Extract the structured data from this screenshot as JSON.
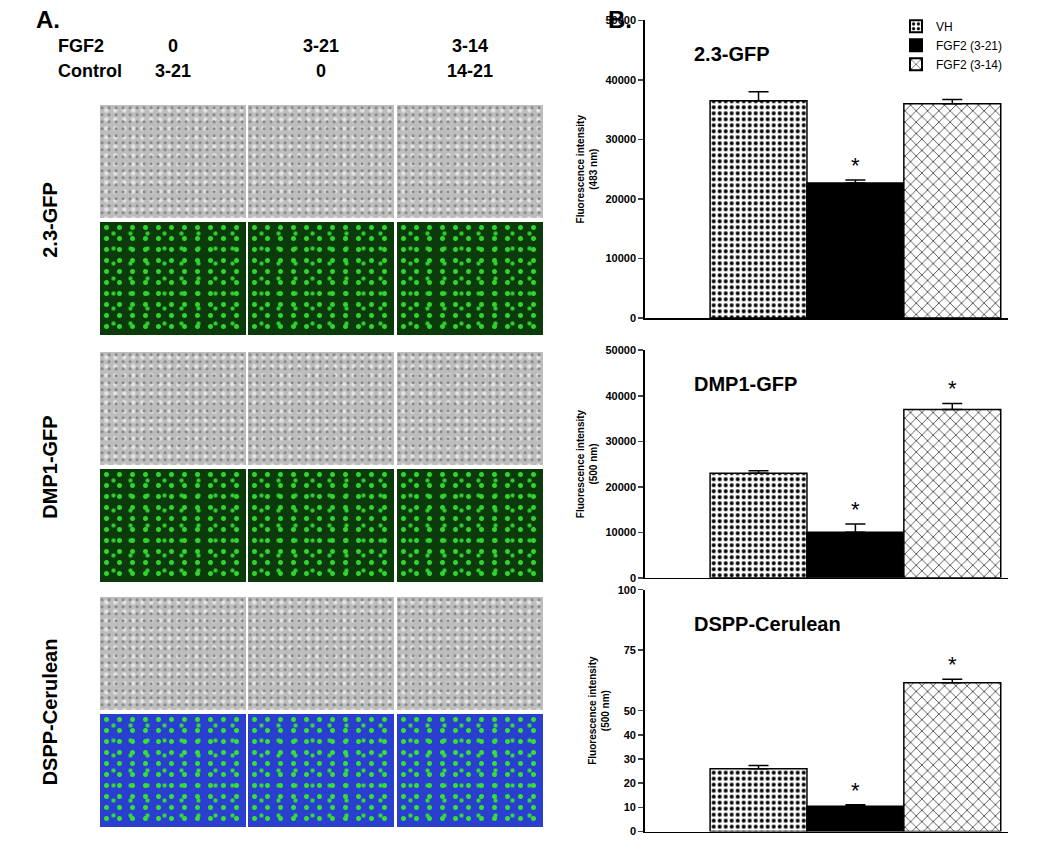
{
  "panel_a": {
    "label": "A.",
    "header_labels": [
      "FGF2",
      "Control"
    ],
    "columns": [
      [
        "0",
        "3-21"
      ],
      [
        "3-21",
        "0"
      ],
      [
        "3-14",
        "14-21"
      ]
    ],
    "rows": [
      {
        "label": "2.3-GFP",
        "color": "#2fd42f"
      },
      {
        "label": "DMP1-GFP",
        "color": "#2fd42f"
      },
      {
        "label": "DSPP-Cerulean",
        "color": "#2a3fd0"
      }
    ]
  },
  "panel_b_label": "B.",
  "chart_data": [
    {
      "type": "bar",
      "title": "2.3-GFP",
      "y_label": "Fluorescence intensity\n(483 nm)",
      "categories": [
        null
      ],
      "ylim": [
        0,
        50000
      ],
      "yticks": [
        0,
        10000,
        20000,
        30000,
        40000,
        50000
      ],
      "tick_labels": "y",
      "legend": "upper right",
      "series": [
        {
          "name": "VH",
          "color": "#ffffff",
          "marker": "dotted",
          "values": [
            36500
          ],
          "error": [
            1500
          ]
        },
        {
          "name": "FGF2 (3-21)",
          "color": "#000000",
          "marker": "solid",
          "values": [
            22700
          ],
          "error": [
            500
          ],
          "annotations": [
            "*"
          ]
        },
        {
          "name": "FGF2 (3-14)",
          "color": "#ffffff",
          "marker": "crosshatch",
          "values": [
            36000
          ],
          "error": [
            700
          ]
        }
      ]
    },
    {
      "type": "bar",
      "title": "DMP1-GFP",
      "y_label": "Fluorescence intensity\n(500 nm)",
      "categories": [
        null
      ],
      "ylim": [
        0,
        50000
      ],
      "yticks": [
        0,
        10000,
        20000,
        30000,
        40000,
        50000
      ],
      "tick_labels": "y",
      "series": [
        {
          "name": "VH",
          "color": "#ffffff",
          "marker": "dotted",
          "values": [
            23000
          ],
          "error": [
            500
          ]
        },
        {
          "name": "FGF2 (3-21)",
          "color": "#000000",
          "marker": "solid",
          "values": [
            10000
          ],
          "error": [
            1800
          ],
          "annotations": [
            "*"
          ]
        },
        {
          "name": "FGF2 (3-14)",
          "color": "#ffffff",
          "marker": "crosshatch",
          "values": [
            37000
          ],
          "error": [
            1300
          ],
          "annotations": [
            "*"
          ]
        }
      ]
    },
    {
      "type": "bar",
      "title": "DSPP-Cerulean",
      "y_label": "Fluorescence intensity\n(500 nm)",
      "categories": [
        null
      ],
      "ylim": [
        0,
        100
      ],
      "yticks": [
        0,
        10,
        20,
        30,
        40,
        50,
        75,
        100
      ],
      "tick_labels": "y",
      "series": [
        {
          "name": "VH",
          "color": "#ffffff",
          "marker": "dotted",
          "values": [
            26
          ],
          "error": [
            1.3
          ]
        },
        {
          "name": "FGF2 (3-21)",
          "color": "#000000",
          "marker": "solid",
          "values": [
            10.5
          ],
          "error": [
            0.6
          ],
          "annotations": [
            "*"
          ]
        },
        {
          "name": "FGF2 (3-14)",
          "color": "#ffffff",
          "marker": "crosshatch",
          "values": [
            61.5
          ],
          "error": [
            1.5
          ],
          "annotations": [
            "*"
          ]
        }
      ]
    }
  ]
}
